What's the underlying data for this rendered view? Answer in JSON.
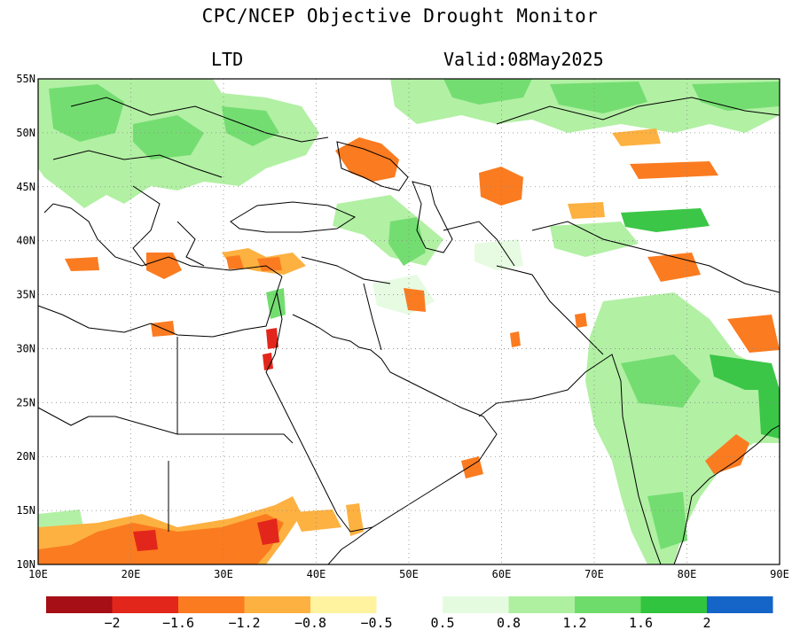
{
  "title": "CPC/NCEP Objective Drought Monitor",
  "subtitle_left": "LTD",
  "subtitle_right": "Valid:08May2025",
  "map": {
    "lon_range": [
      10,
      90
    ],
    "lat_range": [
      10,
      55
    ],
    "x_ticks": [
      "10E",
      "20E",
      "30E",
      "40E",
      "50E",
      "60E",
      "70E",
      "80E",
      "90E"
    ],
    "y_ticks": [
      "10N",
      "15N",
      "20N",
      "25N",
      "30N",
      "35N",
      "40N",
      "45N",
      "50N",
      "55N"
    ],
    "grid": "dotted"
  },
  "colorbar": {
    "dry_colors": [
      "#a50f15",
      "#e3261b",
      "#fb7b20",
      "#fdb140",
      "#fff3a0"
    ],
    "wet_colors": [
      "#e5fbe0",
      "#aef0a0",
      "#6ddc6a",
      "#31c43e",
      "#1565c8"
    ],
    "dry_labels": [
      "-2",
      "-1.6",
      "-1.2",
      "-0.8",
      "-0.5"
    ],
    "wet_labels": [
      "0.5",
      "0.8",
      "1.2",
      "1.6",
      "2"
    ]
  }
}
